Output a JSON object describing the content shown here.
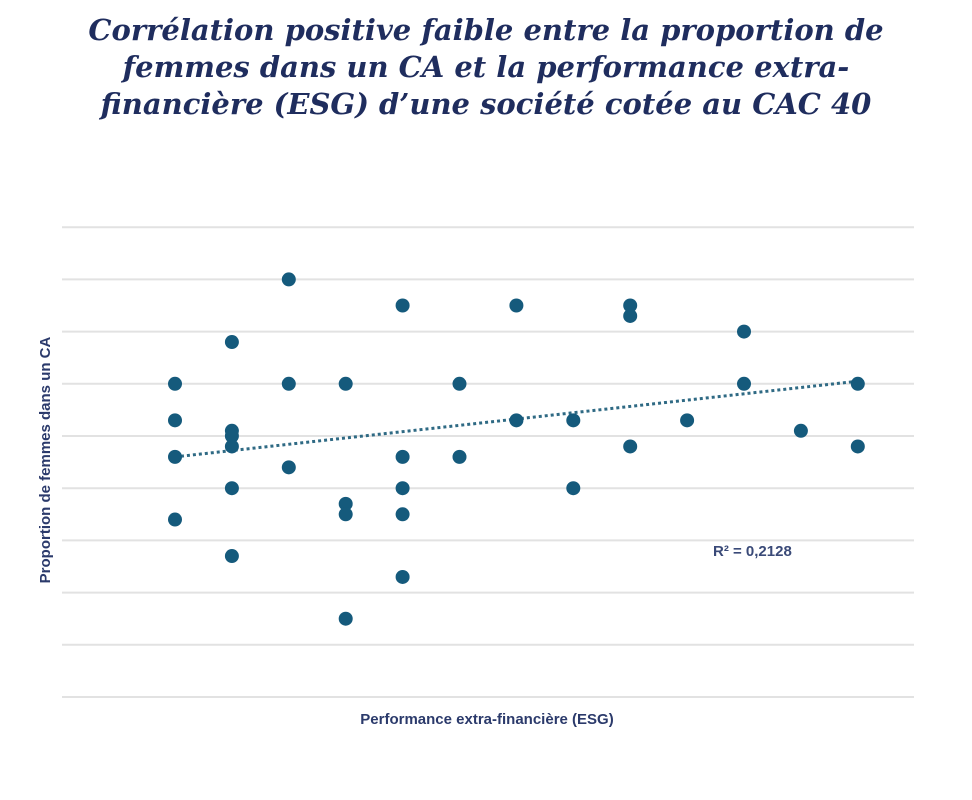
{
  "chart_data": {
    "type": "scatter",
    "title_lines": [
      "Corrélation positive faible entre la proportion de",
      "femmes dans un CA et la performance extra-",
      "financière (ESG) d’une société cotée au CAC 40"
    ],
    "xlabel": "Performance extra-financière (ESG)",
    "ylabel": "Proportion de femmes dans un CA",
    "xlim": [
      0,
      14
    ],
    "ylim": [
      0,
      9
    ],
    "grid": true,
    "gridlines_y": [
      0,
      1,
      2,
      3,
      4,
      5,
      6,
      7,
      8,
      9
    ],
    "point_color": "#155a7c",
    "points": [
      {
        "x": 1,
        "y": 6.0
      },
      {
        "x": 1,
        "y": 5.3
      },
      {
        "x": 1,
        "y": 4.6
      },
      {
        "x": 1,
        "y": 3.4
      },
      {
        "x": 2,
        "y": 6.8
      },
      {
        "x": 2,
        "y": 5.1
      },
      {
        "x": 2,
        "y": 5.0
      },
      {
        "x": 2,
        "y": 4.8
      },
      {
        "x": 2,
        "y": 4.0
      },
      {
        "x": 2,
        "y": 2.7
      },
      {
        "x": 3,
        "y": 8.0
      },
      {
        "x": 3,
        "y": 6.0
      },
      {
        "x": 3,
        "y": 4.4
      },
      {
        "x": 4,
        "y": 6.0
      },
      {
        "x": 4,
        "y": 3.7
      },
      {
        "x": 4,
        "y": 3.5
      },
      {
        "x": 4,
        "y": 1.5
      },
      {
        "x": 5,
        "y": 7.5
      },
      {
        "x": 5,
        "y": 4.6
      },
      {
        "x": 5,
        "y": 4.0
      },
      {
        "x": 5,
        "y": 3.5
      },
      {
        "x": 5,
        "y": 2.3
      },
      {
        "x": 6,
        "y": 6.0
      },
      {
        "x": 6,
        "y": 4.6
      },
      {
        "x": 7,
        "y": 7.5
      },
      {
        "x": 7,
        "y": 5.3
      },
      {
        "x": 8,
        "y": 5.3
      },
      {
        "x": 8,
        "y": 4.0
      },
      {
        "x": 9,
        "y": 7.5
      },
      {
        "x": 9,
        "y": 7.3
      },
      {
        "x": 9,
        "y": 4.8
      },
      {
        "x": 10,
        "y": 5.3
      },
      {
        "x": 11,
        "y": 7.0
      },
      {
        "x": 11,
        "y": 6.0
      },
      {
        "x": 12,
        "y": 5.1
      },
      {
        "x": 13,
        "y": 6.0
      },
      {
        "x": 13,
        "y": 4.8
      }
    ],
    "trendline": {
      "type": "linear",
      "x": [
        1,
        13
      ],
      "y": [
        4.6,
        6.05
      ]
    },
    "annotation": "R² = 0,2128"
  }
}
